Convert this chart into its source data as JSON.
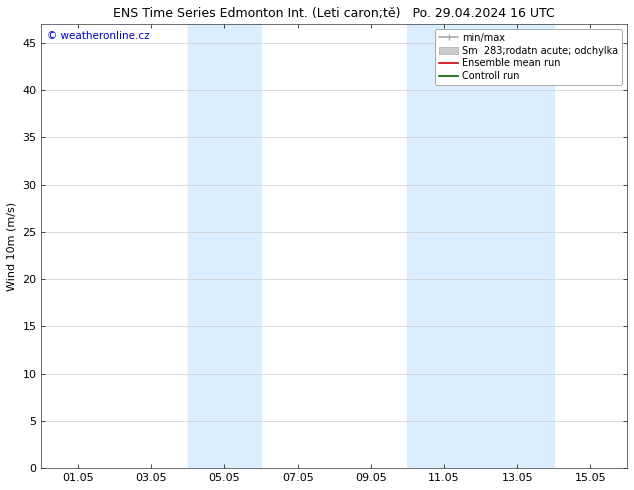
{
  "title_left": "ENS Time Series Edmonton Int. (Leti caron;tě)",
  "title_right": "Po. 29.04.2024 16 UTC",
  "ylabel": "Wind 10m (m/s)",
  "watermark": "© weatheronline.cz",
  "ylim": [
    0,
    47
  ],
  "yticks": [
    0,
    5,
    10,
    15,
    20,
    25,
    30,
    35,
    40,
    45
  ],
  "xtick_labels": [
    "01.05",
    "03.05",
    "05.05",
    "07.05",
    "09.05",
    "11.05",
    "13.05",
    "15.05"
  ],
  "xtick_positions": [
    1.0,
    3.0,
    5.0,
    7.0,
    9.0,
    11.0,
    13.0,
    15.0
  ],
  "xlim": [
    0,
    16
  ],
  "shaded_bands": [
    {
      "x_start": 4.0,
      "x_end": 6.0
    },
    {
      "x_start": 10.0,
      "x_end": 12.0
    },
    {
      "x_start": 12.0,
      "x_end": 14.0
    }
  ],
  "shaded_color": "#daeeff",
  "background_color": "#ffffff",
  "grid_color": "#cccccc",
  "legend_entries": [
    {
      "label": "min/max",
      "color": "#aaaaaa",
      "lw": 1.2,
      "type": "line_with_caps"
    },
    {
      "label": "Sm  283;rodatn acute; odchylka",
      "color": "#cccccc",
      "lw": 8,
      "type": "bar"
    },
    {
      "label": "Ensemble mean run",
      "color": "#cc0000",
      "lw": 1.2,
      "type": "line"
    },
    {
      "label": "Controll run",
      "color": "#006600",
      "lw": 1.2,
      "type": "line"
    }
  ],
  "title_fontsize": 9,
  "tick_fontsize": 8,
  "ylabel_fontsize": 8,
  "legend_fontsize": 7,
  "watermark_color": "#0000cc",
  "watermark_fontsize": 7.5
}
